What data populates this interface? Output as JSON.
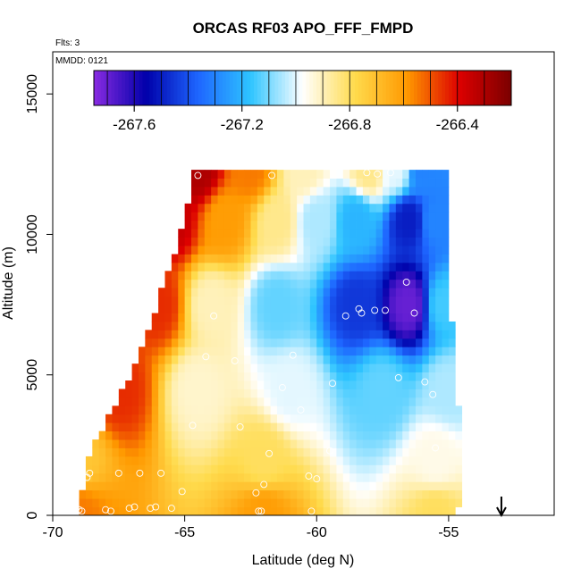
{
  "chart_data": {
    "type": "heatmap",
    "title": "ORCAS RF03 APO_FFF_FMPD",
    "notes": {
      "flights": "Flts: 3",
      "date": "MMDD: 0121"
    },
    "xlabel": "Latitude (deg N)",
    "ylabel": "Altitude (m)",
    "xlim": [
      -70,
      -51
    ],
    "ylim": [
      0,
      16500
    ],
    "x_ticks": [
      -70,
      -65,
      -60,
      -55
    ],
    "x_tick_labels": [
      "-70",
      "-65",
      "-60",
      "-55"
    ],
    "y_ticks": [
      0,
      5000,
      10000,
      15000
    ],
    "y_tick_labels": [
      "0",
      "5000",
      "10000",
      "15000"
    ],
    "colorbar": {
      "range": [
        -267.75,
        -266.2
      ],
      "ticks": [
        -267.6,
        -267.2,
        -266.8,
        -266.4
      ],
      "tick_labels": [
        "-267.6",
        "-267.2",
        "-266.8",
        "-266.4"
      ],
      "colors": [
        "#8a2be2",
        "#0000aa",
        "#1e66ff",
        "#2ec4ff",
        "#ffffff",
        "#ffdb4d",
        "#ff9900",
        "#dd0000",
        "#7a0000"
      ]
    },
    "arrow_latitude": -53,
    "domain_top_edge": [
      [
        -69.0,
        400
      ],
      [
        -68.5,
        2500
      ],
      [
        -67.0,
        5000
      ],
      [
        -65.3,
        9500
      ],
      [
        -64.6,
        12300
      ],
      [
        -59.0,
        12300
      ],
      [
        -56.2,
        12300
      ],
      [
        -55.0,
        12300
      ],
      [
        -55.1,
        8000
      ],
      [
        -55.0,
        7000
      ],
      [
        -54.9,
        5000
      ],
      [
        -54.6,
        3000
      ],
      [
        -54.7,
        1300
      ],
      [
        -54.5,
        1200
      ],
      [
        -54.8,
        0
      ]
    ],
    "field_nodes": [
      {
        "lat": -69.0,
        "alt": 0,
        "value": -266.55
      },
      {
        "lat": -62.0,
        "alt": 0,
        "value": -266.6
      },
      {
        "lat": -55.5,
        "alt": 0,
        "value": -266.8
      },
      {
        "lat": -69.0,
        "alt": 2000,
        "value": -266.72
      },
      {
        "lat": -62.0,
        "alt": 2000,
        "value": -266.8
      },
      {
        "lat": -55.5,
        "alt": 2000,
        "value": -266.95
      },
      {
        "lat": -67.5,
        "alt": 4500,
        "value": -266.45
      },
      {
        "lat": -64.5,
        "alt": 4500,
        "value": -266.92
      },
      {
        "lat": -61.0,
        "alt": 4500,
        "value": -267.0
      },
      {
        "lat": -57.5,
        "alt": 4500,
        "value": -267.12
      },
      {
        "lat": -55.0,
        "alt": 4500,
        "value": -267.05
      },
      {
        "lat": -66.0,
        "alt": 7500,
        "value": -266.45
      },
      {
        "lat": -64.0,
        "alt": 7500,
        "value": -266.9
      },
      {
        "lat": -61.5,
        "alt": 7500,
        "value": -267.12
      },
      {
        "lat": -58.5,
        "alt": 7500,
        "value": -267.45
      },
      {
        "lat": -56.5,
        "alt": 7500,
        "value": -267.7
      },
      {
        "lat": -55.2,
        "alt": 7500,
        "value": -267.15
      },
      {
        "lat": -65.5,
        "alt": 10500,
        "value": -266.35
      },
      {
        "lat": -63.5,
        "alt": 10500,
        "value": -266.6
      },
      {
        "lat": -61.5,
        "alt": 10500,
        "value": -266.85
      },
      {
        "lat": -60.0,
        "alt": 10500,
        "value": -267.05
      },
      {
        "lat": -58.5,
        "alt": 10500,
        "value": -267.2
      },
      {
        "lat": -56.5,
        "alt": 10500,
        "value": -267.5
      },
      {
        "lat": -55.5,
        "alt": 10500,
        "value": -267.3
      },
      {
        "lat": -64.5,
        "alt": 12300,
        "value": -266.3
      },
      {
        "lat": -62.5,
        "alt": 12300,
        "value": -266.55
      },
      {
        "lat": -60.5,
        "alt": 12300,
        "value": -266.9
      },
      {
        "lat": -58.0,
        "alt": 12300,
        "value": -266.85
      },
      {
        "lat": -57.0,
        "alt": 12300,
        "value": -267.0
      },
      {
        "lat": -56.0,
        "alt": 12300,
        "value": -267.3
      }
    ],
    "sample_points": [
      [
        -69.0,
        200
      ],
      [
        -68.9,
        150
      ],
      [
        -68.7,
        1350
      ],
      [
        -68.6,
        1500
      ],
      [
        -68.0,
        200
      ],
      [
        -67.8,
        150
      ],
      [
        -67.5,
        1500
      ],
      [
        -67.1,
        250
      ],
      [
        -66.9,
        300
      ],
      [
        -66.7,
        1500
      ],
      [
        -66.3,
        250
      ],
      [
        -66.1,
        300
      ],
      [
        -65.9,
        1500
      ],
      [
        -65.5,
        250
      ],
      [
        -65.1,
        850
      ],
      [
        -64.7,
        3200
      ],
      [
        -64.5,
        12100
      ],
      [
        -64.2,
        5650
      ],
      [
        -63.9,
        7100
      ],
      [
        -63.1,
        5500
      ],
      [
        -62.9,
        3150
      ],
      [
        -62.3,
        800
      ],
      [
        -62.2,
        150
      ],
      [
        -62.1,
        150
      ],
      [
        -62.0,
        1100
      ],
      [
        -61.8,
        2200
      ],
      [
        -61.7,
        12100
      ],
      [
        -61.3,
        4550
      ],
      [
        -60.9,
        5700
      ],
      [
        -60.6,
        3750
      ],
      [
        -60.3,
        1400
      ],
      [
        -60.2,
        150
      ],
      [
        -60.0,
        1300
      ],
      [
        -59.5,
        2300
      ],
      [
        -59.4,
        4700
      ],
      [
        -58.9,
        7100
      ],
      [
        -58.4,
        7350
      ],
      [
        -58.3,
        7200
      ],
      [
        -58.1,
        12200
      ],
      [
        -57.8,
        7300
      ],
      [
        -57.7,
        12150
      ],
      [
        -57.4,
        7300
      ],
      [
        -57.2,
        12200
      ],
      [
        -56.9,
        4900
      ],
      [
        -56.6,
        8300
      ],
      [
        -56.3,
        7200
      ],
      [
        -55.9,
        4750
      ],
      [
        -55.8,
        12550
      ],
      [
        -55.6,
        4300
      ],
      [
        -55.5,
        2400
      ]
    ]
  }
}
